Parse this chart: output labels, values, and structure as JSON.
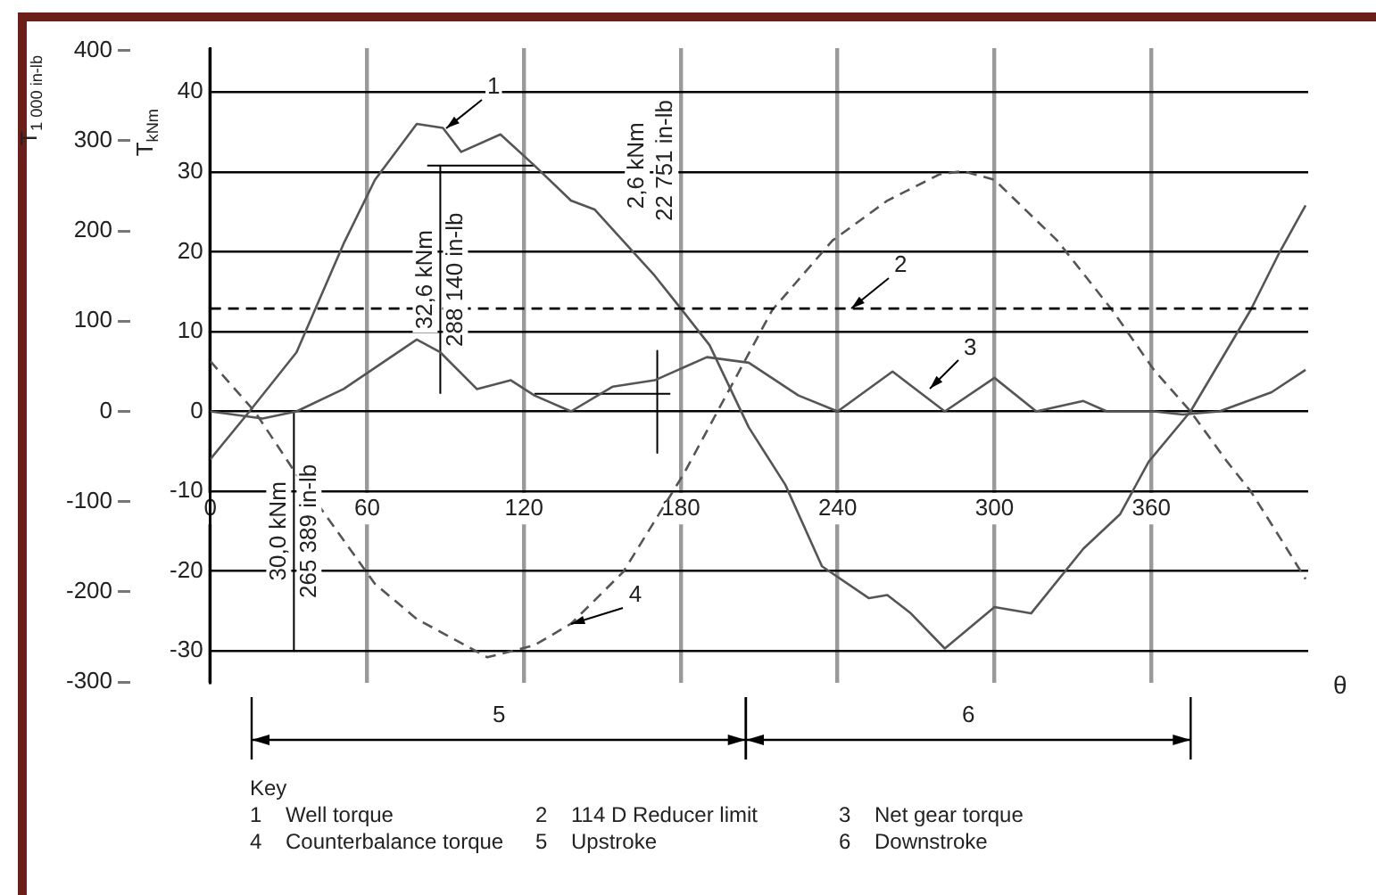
{
  "chart_data": {
    "type": "line",
    "xlabel": "θ",
    "ylabel": "T$_{kNm}$",
    "y2label": "T$_{1 000 in-lb}$",
    "xlim": [
      0,
      420
    ],
    "xticks": [
      0,
      60,
      120,
      180,
      240,
      300,
      360
    ],
    "ylim": [
      -34,
      45.5
    ],
    "yticks": [
      -30,
      -20,
      -10,
      0,
      10,
      20,
      30,
      40
    ],
    "y2lim": [
      -300.9,
      402.7
    ],
    "y2ticks": [
      -300,
      -200,
      -100,
      0,
      100,
      200,
      300,
      400
    ],
    "grid": true,
    "legend": false,
    "marker": "none",
    "series": [
      {
        "color": "#555555",
        "line_style": "solid",
        "x": [
          0,
          15,
          33,
          51,
          63,
          79,
          89,
          96,
          111,
          124,
          138,
          147,
          170,
          179,
          191,
          206,
          220,
          234,
          252,
          259,
          268,
          281,
          300,
          314,
          334,
          348,
          359,
          375,
          398,
          409,
          419
        ],
        "values": [
          -6,
          0,
          7.4,
          21,
          29,
          36,
          35.5,
          32.5,
          34.7,
          30.8,
          26.4,
          25.3,
          17,
          13.3,
          8.3,
          -2,
          -9.2,
          -19.4,
          -23.4,
          -23,
          -25.3,
          -29.7,
          -24.5,
          -25.3,
          -17.2,
          -12.9,
          -6.3,
          0,
          12.7,
          19.9,
          25.8
        ]
      },
      {
        "color": "#555555",
        "line_style": "solid",
        "x": [
          0,
          20,
          33,
          51,
          79,
          88,
          102,
          115,
          124,
          138,
          154,
          170,
          190,
          206,
          225,
          240,
          261,
          281,
          300,
          316,
          334,
          343,
          361,
          372,
          386,
          406,
          419
        ],
        "values": [
          0,
          -0.9,
          0,
          2.8,
          9,
          7.4,
          2.8,
          3.9,
          2,
          0,
          3.1,
          3.9,
          6.8,
          6.1,
          2,
          0,
          5,
          0,
          4.2,
          0,
          1.3,
          0,
          0,
          -0.4,
          0,
          2.4,
          5.2
        ]
      },
      {
        "color": "#555555",
        "line_style": "dashed",
        "x": [
          0,
          17,
          33,
          63,
          79,
          106,
          124,
          138,
          158,
          181,
          215,
          238,
          259,
          279,
          288,
          300,
          324,
          345,
          361,
          375,
          389,
          398,
          409,
          419
        ],
        "values": [
          6.3,
          0,
          -7.9,
          -21.6,
          -26,
          -30.8,
          -29.3,
          -26.6,
          -20.1,
          -7.9,
          12.7,
          21.4,
          26.4,
          29.7,
          30.1,
          29,
          21.4,
          12.7,
          5.2,
          0,
          -6.3,
          -10,
          -15.7,
          -21
        ]
      },
      {
        "color": "#000000",
        "line_style": "solid",
        "x": [
          83,
          124
        ],
        "values": [
          30.8,
          30.8
        ]
      },
      {
        "color": "#000000",
        "line_style": "solid",
        "x": [
          88,
          88
        ],
        "values": [
          2.2,
          30.8
        ]
      },
      {
        "color": "#000000",
        "line_style": "solid",
        "x": [
          124,
          176
        ],
        "values": [
          2.2,
          2.2
        ]
      },
      {
        "color": "#000000",
        "line_style": "solid",
        "x": [
          171,
          171
        ],
        "values": [
          7.6,
          -5.2
        ]
      },
      {
        "color": "#000000",
        "line_style": "solid",
        "x": [
          32,
          32
        ],
        "values": [
          0,
          -30
        ]
      }
    ],
    "ref_lines": [
      {
        "axis": "y2",
        "value": 114,
        "line_style": "dashed",
        "color": "#000000"
      }
    ],
    "annotations": [
      {
        "text": "32,6 kNm",
        "x": 88,
        "y": 16.5
      },
      {
        "text": "288 140 in-lb",
        "x": 88,
        "y": 16.5
      },
      "2,6 kNm",
      "22 751 in-lb",
      "5",
      "6",
      {
        "text": "30,0 kNm",
        "x": 32,
        "y": -15
      },
      {
        "text": "265 389 in-lb",
        "x": 32,
        "y": -15
      },
      {
        "text": "1",
        "x": 90,
        "y": 35.5
      },
      {
        "text": "2",
        "x": 245,
        "y": 12.88
      },
      {
        "text": "3",
        "x": 275,
        "y": 2.8
      },
      {
        "text": "4",
        "x": 138,
        "y": -26.6
      },
      "Key",
      "1 Well torque",
      "2 114 D Reducer limit",
      "3 Net gear torque",
      "4 Counterbalance torque",
      "5 Upstroke",
      "6 Downstroke"
    ]
  }
}
